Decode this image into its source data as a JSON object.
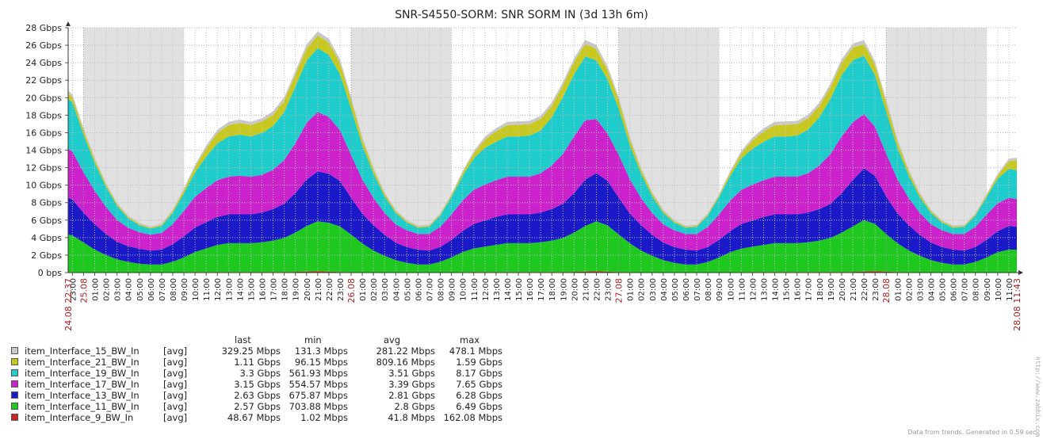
{
  "chart_data": {
    "type": "area",
    "stacked": true,
    "title": "SNR-S4550-SORM: SNR SORM IN (3d 13h 6m)",
    "ylabel": "",
    "ylim_gbps": [
      0,
      28
    ],
    "y_ticks": [
      "0 bps",
      "2 Gbps",
      "4 Gbps",
      "6 Gbps",
      "8 Gbps",
      "10 Gbps",
      "12 Gbps",
      "14 Gbps",
      "16 Gbps",
      "18 Gbps",
      "20 Gbps",
      "22 Gbps",
      "24 Gbps",
      "26 Gbps",
      "28 Gbps"
    ],
    "x_start_label": "24.08 22:37",
    "x_end_label": "28.08 11:43",
    "x_day_labels": [
      {
        "label": "25.08",
        "hour": 24
      },
      {
        "label": "26.08",
        "hour": 48
      },
      {
        "label": "27.08",
        "hour": 72
      },
      {
        "label": "28.08",
        "hour": 96
      }
    ],
    "x_hour_start": -1.383,
    "x_hour_end": 83.717,
    "time_hours": [
      -1.383,
      -1,
      0,
      1,
      2,
      3,
      4,
      5,
      6,
      7,
      8,
      9,
      10,
      11,
      12,
      13,
      14,
      15,
      16,
      17,
      18,
      19,
      20,
      21,
      22,
      23,
      24,
      25,
      26,
      27,
      28,
      29,
      30,
      31,
      32,
      33,
      34,
      35,
      36,
      37,
      38,
      39,
      40,
      41,
      42,
      43,
      44,
      45,
      46,
      47,
      48,
      49,
      50,
      51,
      52,
      53,
      54,
      55,
      56,
      57,
      58,
      59,
      60,
      61,
      62,
      63,
      64,
      65,
      66,
      67,
      68,
      69,
      70,
      71,
      72,
      73,
      74,
      75,
      76,
      77,
      78,
      79,
      80,
      81,
      82,
      83,
      83.717
    ],
    "series": [
      {
        "name": "item_Interface_9_BW_In",
        "color": "#cc2222",
        "values": [
          0.05,
          0.05,
          0.04,
          0.03,
          0.02,
          0.02,
          0.02,
          0.02,
          0.02,
          0.03,
          0.04,
          0.05,
          0.06,
          0.06,
          0.06,
          0.06,
          0.06,
          0.06,
          0.06,
          0.06,
          0.07,
          0.08,
          0.12,
          0.16,
          0.1,
          0.07,
          0.05,
          0.04,
          0.03,
          0.02,
          0.02,
          0.02,
          0.02,
          0.02,
          0.03,
          0.04,
          0.05,
          0.06,
          0.06,
          0.06,
          0.06,
          0.06,
          0.06,
          0.06,
          0.06,
          0.07,
          0.08,
          0.12,
          0.16,
          0.1,
          0.07,
          0.05,
          0.04,
          0.03,
          0.02,
          0.02,
          0.02,
          0.02,
          0.02,
          0.03,
          0.04,
          0.05,
          0.06,
          0.06,
          0.06,
          0.06,
          0.06,
          0.06,
          0.06,
          0.06,
          0.07,
          0.08,
          0.12,
          0.16,
          0.1,
          0.07,
          0.05,
          0.04,
          0.03,
          0.02,
          0.02,
          0.02,
          0.02,
          0.02,
          0.03,
          0.04,
          0.05
        ]
      },
      {
        "name": "item_Interface_11_BW_In",
        "color": "#1ec81e",
        "values": [
          4.3,
          4.2,
          3.4,
          2.6,
          2.0,
          1.5,
          1.2,
          1.0,
          0.9,
          0.9,
          1.2,
          1.7,
          2.3,
          2.7,
          3.1,
          3.3,
          3.3,
          3.3,
          3.4,
          3.6,
          3.9,
          4.5,
          5.2,
          5.7,
          5.6,
          5.2,
          4.3,
          3.3,
          2.5,
          1.9,
          1.4,
          1.1,
          0.9,
          0.9,
          1.2,
          1.7,
          2.3,
          2.7,
          2.9,
          3.1,
          3.3,
          3.3,
          3.3,
          3.4,
          3.6,
          3.9,
          4.5,
          5.2,
          5.7,
          5.3,
          4.3,
          3.3,
          2.5,
          1.9,
          1.4,
          1.1,
          0.9,
          0.9,
          1.2,
          1.7,
          2.3,
          2.7,
          2.9,
          3.1,
          3.3,
          3.3,
          3.3,
          3.4,
          3.6,
          3.9,
          4.5,
          5.2,
          5.9,
          5.4,
          4.3,
          3.3,
          2.5,
          1.9,
          1.4,
          1.1,
          0.9,
          0.9,
          1.2,
          1.7,
          2.3,
          2.6,
          2.57
        ]
      },
      {
        "name": "item_Interface_13_BW_In",
        "color": "#1a1ac8",
        "values": [
          4.2,
          4.1,
          3.4,
          2.9,
          2.4,
          2.0,
          1.8,
          1.7,
          1.6,
          1.7,
          2.0,
          2.4,
          2.8,
          3.0,
          3.2,
          3.3,
          3.3,
          3.3,
          3.4,
          3.6,
          3.9,
          4.5,
          5.3,
          5.7,
          5.6,
          5.2,
          4.2,
          3.4,
          2.9,
          2.4,
          2.0,
          1.8,
          1.7,
          1.6,
          1.7,
          2.0,
          2.4,
          2.8,
          3.0,
          3.2,
          3.3,
          3.3,
          3.3,
          3.4,
          3.6,
          3.9,
          4.5,
          5.3,
          5.5,
          5.1,
          4.2,
          3.4,
          2.9,
          2.4,
          2.0,
          1.8,
          1.7,
          1.6,
          1.7,
          2.0,
          2.4,
          2.8,
          3.0,
          3.2,
          3.3,
          3.3,
          3.3,
          3.4,
          3.6,
          3.9,
          4.5,
          5.3,
          5.9,
          5.5,
          4.3,
          3.4,
          2.9,
          2.4,
          2.0,
          1.8,
          1.7,
          1.6,
          1.7,
          2.0,
          2.4,
          2.7,
          2.63
        ]
      },
      {
        "name": "item_Interface_17_BW_In",
        "color": "#cc22cc",
        "values": [
          5.6,
          5.5,
          4.6,
          3.8,
          3.1,
          2.5,
          2.1,
          1.9,
          1.8,
          1.9,
          2.3,
          2.9,
          3.5,
          3.9,
          4.2,
          4.3,
          4.4,
          4.3,
          4.3,
          4.5,
          5.0,
          5.7,
          6.5,
          6.8,
          6.5,
          5.8,
          4.9,
          3.9,
          3.1,
          2.5,
          2.1,
          1.9,
          1.8,
          1.9,
          2.3,
          2.9,
          3.5,
          3.9,
          4.1,
          4.2,
          4.3,
          4.3,
          4.3,
          4.5,
          5.0,
          5.7,
          6.5,
          6.8,
          6.2,
          5.4,
          4.9,
          3.9,
          3.1,
          2.5,
          2.1,
          1.9,
          1.8,
          1.9,
          2.3,
          2.9,
          3.5,
          3.9,
          4.1,
          4.2,
          4.3,
          4.3,
          4.3,
          4.5,
          5.0,
          5.7,
          6.5,
          6.6,
          6.2,
          5.6,
          4.9,
          3.9,
          3.1,
          2.5,
          2.1,
          1.9,
          1.8,
          1.9,
          2.3,
          2.9,
          3.2,
          3.2,
          3.15
        ]
      },
      {
        "name": "item_Interface_19_BW_In",
        "color": "#1ecccc",
        "values": [
          5.7,
          5.6,
          4.3,
          3.2,
          2.3,
          1.6,
          1.1,
          0.8,
          0.7,
          0.8,
          1.3,
          2.0,
          2.8,
          3.6,
          4.2,
          4.6,
          4.7,
          4.6,
          4.8,
          5.0,
          5.5,
          6.5,
          7.1,
          7.3,
          7.1,
          6.4,
          5.3,
          3.9,
          2.8,
          1.9,
          1.3,
          0.9,
          0.7,
          0.8,
          1.3,
          2.0,
          2.8,
          3.6,
          4.2,
          4.4,
          4.6,
          4.6,
          4.7,
          4.9,
          5.5,
          6.5,
          7.1,
          7.3,
          6.7,
          6.2,
          5.3,
          3.9,
          2.8,
          1.9,
          1.3,
          0.9,
          0.7,
          0.8,
          1.3,
          2.0,
          2.8,
          3.6,
          4.1,
          4.4,
          4.6,
          4.6,
          4.7,
          5.0,
          5.5,
          6.3,
          7.0,
          7.1,
          6.7,
          5.9,
          4.8,
          3.6,
          2.6,
          1.8,
          1.3,
          0.9,
          0.7,
          0.8,
          1.3,
          2.0,
          2.8,
          3.3,
          3.3
        ]
      },
      {
        "name": "item_Interface_21_BW_In",
        "color": "#c8c81e",
        "values": [
          0.6,
          0.6,
          0.48,
          0.37,
          0.27,
          0.2,
          0.15,
          0.13,
          0.12,
          0.13,
          0.2,
          0.34,
          0.58,
          0.95,
          1.2,
          1.3,
          1.35,
          1.3,
          1.32,
          1.3,
          1.3,
          1.35,
          1.4,
          1.45,
          1.4,
          1.3,
          1.0,
          0.7,
          0.45,
          0.3,
          0.2,
          0.15,
          0.13,
          0.12,
          0.13,
          0.2,
          0.34,
          0.58,
          0.95,
          1.2,
          1.3,
          1.35,
          1.3,
          1.3,
          1.3,
          1.35,
          1.4,
          1.45,
          1.3,
          1.1,
          1.0,
          0.7,
          0.45,
          0.3,
          0.2,
          0.15,
          0.13,
          0.12,
          0.13,
          0.2,
          0.34,
          0.58,
          0.95,
          1.2,
          1.3,
          1.35,
          1.3,
          1.3,
          1.3,
          1.35,
          1.4,
          1.45,
          1.3,
          1.2,
          1.0,
          0.7,
          0.45,
          0.3,
          0.2,
          0.15,
          0.13,
          0.12,
          0.13,
          0.2,
          0.34,
          0.9,
          1.11
        ]
      },
      {
        "name": "item_Interface_15_BW_In",
        "color": "#c8c8c8",
        "values": [
          0.35,
          0.34,
          0.3,
          0.25,
          0.2,
          0.17,
          0.15,
          0.14,
          0.14,
          0.15,
          0.18,
          0.22,
          0.28,
          0.33,
          0.36,
          0.38,
          0.39,
          0.38,
          0.38,
          0.39,
          0.4,
          0.42,
          0.45,
          0.47,
          0.46,
          0.42,
          0.36,
          0.3,
          0.25,
          0.2,
          0.17,
          0.15,
          0.14,
          0.14,
          0.15,
          0.18,
          0.22,
          0.28,
          0.33,
          0.36,
          0.38,
          0.39,
          0.38,
          0.38,
          0.39,
          0.4,
          0.42,
          0.45,
          0.46,
          0.41,
          0.36,
          0.3,
          0.25,
          0.2,
          0.17,
          0.15,
          0.14,
          0.14,
          0.15,
          0.18,
          0.22,
          0.28,
          0.33,
          0.36,
          0.38,
          0.39,
          0.38,
          0.38,
          0.39,
          0.4,
          0.42,
          0.45,
          0.47,
          0.42,
          0.36,
          0.3,
          0.25,
          0.2,
          0.17,
          0.15,
          0.14,
          0.14,
          0.15,
          0.18,
          0.22,
          0.3,
          0.33
        ]
      }
    ]
  },
  "legend": {
    "headers": {
      "last": "last",
      "min": "min",
      "avg": "avg",
      "max": "max"
    },
    "rows": [
      {
        "name": "item_Interface_15_BW_In",
        "fn": "[avg]",
        "last": "329.25 Mbps",
        "min": "131.3 Mbps",
        "avg": "281.22 Mbps",
        "max": "478.1 Mbps",
        "color": "#c8c8c8"
      },
      {
        "name": "item_Interface_21_BW_In",
        "fn": "[avg]",
        "last": "1.11 Gbps",
        "min": "96.15 Mbps",
        "avg": "809.16 Mbps",
        "max": "1.59 Gbps",
        "color": "#c8c81e"
      },
      {
        "name": "item_Interface_19_BW_In",
        "fn": "[avg]",
        "last": "3.3 Gbps",
        "min": "561.93 Mbps",
        "avg": "3.51 Gbps",
        "max": "8.17 Gbps",
        "color": "#1ecccc"
      },
      {
        "name": "item_Interface_17_BW_In",
        "fn": "[avg]",
        "last": "3.15 Gbps",
        "min": "554.57 Mbps",
        "avg": "3.39 Gbps",
        "max": "7.65 Gbps",
        "color": "#cc22cc"
      },
      {
        "name": "item_Interface_13_BW_In",
        "fn": "[avg]",
        "last": "2.63 Gbps",
        "min": "675.87 Mbps",
        "avg": "2.81 Gbps",
        "max": "6.28 Gbps",
        "color": "#1a1ac8"
      },
      {
        "name": "item_Interface_11_BW_In",
        "fn": "[avg]",
        "last": "2.57 Gbps",
        "min": "703.88 Mbps",
        "avg": "2.8 Gbps",
        "max": "6.49 Gbps",
        "color": "#1ec81e"
      },
      {
        "name": "item_Interface_9_BW_In",
        "fn": "[avg]",
        "last": "48.67 Mbps",
        "min": "1.02 Mbps",
        "avg": "41.8 Mbps",
        "max": "162.08 Mbps",
        "color": "#cc2222"
      }
    ]
  },
  "footer": "Data from trends. Generated in 0.59 sec.",
  "watermark": "http://www.zabbix.com"
}
